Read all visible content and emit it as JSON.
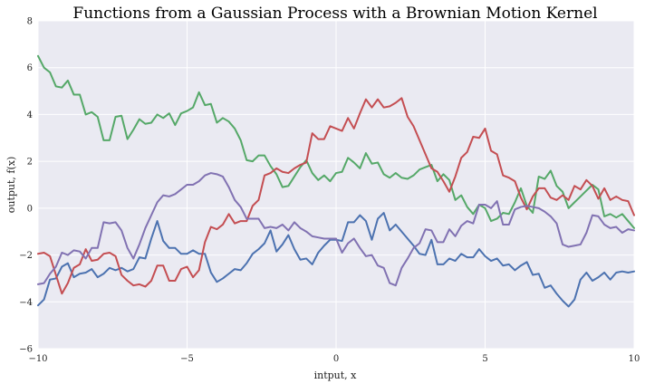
{
  "chart_data": {
    "type": "line",
    "title": "Functions from a Gaussian Process with a Brownian Motion Kernel",
    "xlabel": "intput, x",
    "ylabel": "output, f(x)",
    "xlim": [
      -10,
      10
    ],
    "ylim": [
      -6,
      8
    ],
    "xticks": [
      -10,
      -5,
      0,
      5,
      10
    ],
    "yticks": [
      -6,
      -4,
      -2,
      0,
      2,
      4,
      6,
      8
    ],
    "grid": true,
    "legend": "none",
    "background": "#EAEAF2",
    "x": [
      -10.0,
      -9.8,
      -9.6,
      -9.4,
      -9.2,
      -9.0,
      -8.8,
      -8.6,
      -8.4,
      -8.2,
      -8.0,
      -7.8,
      -7.6,
      -7.4,
      -7.2,
      -7.0,
      -6.8,
      -6.6,
      -6.4,
      -6.2,
      -6.0,
      -5.8,
      -5.6,
      -5.4,
      -5.2,
      -5.0,
      -4.8,
      -4.6,
      -4.4,
      -4.2,
      -4.0,
      -3.8,
      -3.6,
      -3.4,
      -3.2,
      -3.0,
      -2.8,
      -2.6,
      -2.4,
      -2.2,
      -2.0,
      -1.8,
      -1.6,
      -1.4,
      -1.2,
      -1.0,
      -0.8,
      -0.6,
      -0.4,
      -0.2,
      0.0,
      0.2,
      0.4,
      0.6,
      0.8,
      1.0,
      1.2,
      1.4,
      1.6,
      1.8,
      2.0,
      2.2,
      2.4,
      2.6,
      2.8,
      3.0,
      3.2,
      3.4,
      3.6,
      3.8,
      4.0,
      4.2,
      4.4,
      4.6,
      4.8,
      5.0,
      5.2,
      5.4,
      5.6,
      5.8,
      6.0,
      6.2,
      6.4,
      6.6,
      6.8,
      7.0,
      7.2,
      7.4,
      7.6,
      7.8,
      8.0,
      8.2,
      8.4,
      8.6,
      8.8,
      9.0,
      9.2,
      9.4,
      9.6,
      9.8,
      10.0
    ],
    "series": [
      {
        "color": "#4C72B0",
        "values": [
          -4.15,
          -3.9,
          -3.05,
          -3.0,
          -2.5,
          -2.35,
          -2.95,
          -2.8,
          -2.75,
          -2.6,
          -2.95,
          -2.8,
          -2.55,
          -2.65,
          -2.55,
          -2.7,
          -2.6,
          -2.1,
          -2.15,
          -1.3,
          -0.55,
          -1.4,
          -1.7,
          -1.7,
          -1.95,
          -1.95,
          -1.8,
          -1.95,
          -1.95,
          -2.75,
          -3.15,
          -3.0,
          -2.8,
          -2.6,
          -2.65,
          -2.35,
          -1.95,
          -1.75,
          -1.5,
          -0.95,
          -1.85,
          -1.55,
          -1.15,
          -1.75,
          -2.2,
          -2.15,
          -2.4,
          -1.9,
          -1.6,
          -1.35,
          -1.35,
          -1.4,
          -0.6,
          -0.6,
          -0.3,
          -0.55,
          -1.35,
          -0.45,
          -0.2,
          -0.95,
          -0.7,
          -1.0,
          -1.3,
          -1.6,
          -1.95,
          -2.0,
          -1.35,
          -2.4,
          -2.4,
          -2.15,
          -2.25,
          -1.95,
          -2.1,
          -2.1,
          -1.75,
          -2.05,
          -2.25,
          -2.15,
          -2.45,
          -2.4,
          -2.65,
          -2.45,
          -2.3,
          -2.85,
          -2.8,
          -3.4,
          -3.3,
          -3.65,
          -3.95,
          -4.2,
          -3.9,
          -3.05,
          -2.75,
          -3.1,
          -2.95,
          -2.75,
          -3.05,
          -2.75,
          -2.7,
          -2.75,
          -2.7
        ]
      },
      {
        "color": "#55A868",
        "values": [
          6.5,
          6.0,
          5.8,
          5.2,
          5.15,
          5.45,
          4.85,
          4.85,
          4.0,
          4.1,
          3.9,
          2.9,
          2.9,
          3.9,
          3.95,
          2.95,
          3.35,
          3.8,
          3.6,
          3.65,
          4.0,
          3.85,
          4.05,
          3.55,
          4.05,
          4.15,
          4.3,
          4.95,
          4.4,
          4.45,
          3.65,
          3.85,
          3.7,
          3.4,
          2.9,
          2.05,
          2.0,
          2.25,
          2.25,
          1.8,
          1.45,
          0.9,
          0.95,
          1.35,
          1.75,
          2.05,
          1.5,
          1.2,
          1.4,
          1.15,
          1.5,
          1.55,
          2.15,
          1.95,
          1.7,
          2.35,
          1.9,
          1.95,
          1.45,
          1.3,
          1.5,
          1.3,
          1.25,
          1.4,
          1.65,
          1.75,
          1.85,
          1.15,
          1.45,
          1.2,
          0.35,
          0.55,
          0.05,
          -0.25,
          0.15,
          0.0,
          -0.55,
          -0.45,
          -0.2,
          -0.25,
          0.25,
          0.85,
          0.1,
          -0.2,
          1.35,
          1.25,
          1.6,
          0.95,
          0.7,
          0.0,
          0.25,
          0.5,
          0.75,
          1.0,
          0.8,
          -0.35,
          -0.25,
          -0.4,
          -0.25,
          -0.55,
          -0.85
        ]
      },
      {
        "color": "#C44E52",
        "values": [
          -1.95,
          -1.9,
          -2.05,
          -2.85,
          -3.65,
          -3.2,
          -2.55,
          -2.4,
          -1.75,
          -2.25,
          -2.2,
          -1.95,
          -1.9,
          -2.05,
          -2.85,
          -3.1,
          -3.3,
          -3.25,
          -3.35,
          -3.1,
          -2.45,
          -2.45,
          -3.1,
          -3.1,
          -2.6,
          -2.5,
          -2.95,
          -2.65,
          -1.45,
          -0.8,
          -0.9,
          -0.7,
          -0.25,
          -0.65,
          -0.55,
          -0.55,
          0.1,
          0.35,
          1.4,
          1.5,
          1.7,
          1.55,
          1.5,
          1.7,
          1.85,
          1.95,
          3.2,
          2.95,
          2.95,
          3.5,
          3.4,
          3.3,
          3.85,
          3.4,
          4.05,
          4.65,
          4.3,
          4.65,
          4.3,
          4.35,
          4.5,
          4.7,
          3.9,
          3.5,
          2.9,
          2.3,
          1.7,
          1.55,
          1.15,
          0.7,
          1.35,
          2.15,
          2.4,
          3.05,
          3.0,
          3.4,
          2.45,
          2.3,
          1.4,
          1.3,
          1.15,
          0.45,
          -0.05,
          0.5,
          0.85,
          0.85,
          0.45,
          0.35,
          0.55,
          0.35,
          0.95,
          0.8,
          1.2,
          0.95,
          0.4,
          0.85,
          0.35,
          0.5,
          0.35,
          0.3,
          -0.3
        ]
      },
      {
        "color": "#8172B2",
        "values": [
          -3.25,
          -3.2,
          -2.8,
          -2.5,
          -1.9,
          -2.0,
          -1.8,
          -1.85,
          -2.15,
          -1.7,
          -1.7,
          -0.6,
          -0.65,
          -0.6,
          -0.95,
          -1.7,
          -2.15,
          -1.55,
          -0.85,
          -0.3,
          0.25,
          0.55,
          0.5,
          0.6,
          0.8,
          1.0,
          1.0,
          1.15,
          1.4,
          1.5,
          1.45,
          1.35,
          0.9,
          0.35,
          0.05,
          -0.45,
          -0.45,
          -0.45,
          -0.85,
          -0.8,
          -0.85,
          -0.7,
          -0.95,
          -0.6,
          -0.85,
          -1.0,
          -1.2,
          -1.25,
          -1.3,
          -1.3,
          -1.3,
          -1.9,
          -1.5,
          -1.3,
          -1.7,
          -2.05,
          -2.0,
          -2.45,
          -2.55,
          -3.2,
          -3.3,
          -2.55,
          -2.15,
          -1.7,
          -1.5,
          -0.9,
          -0.95,
          -1.45,
          -1.45,
          -0.9,
          -1.2,
          -0.75,
          -0.55,
          -0.65,
          0.15,
          0.15,
          0.0,
          0.3,
          -0.7,
          -0.7,
          -0.05,
          0.05,
          0.1,
          0.05,
          0.0,
          -0.15,
          -0.35,
          -0.65,
          -1.55,
          -1.65,
          -1.6,
          -1.55,
          -1.05,
          -0.3,
          -0.35,
          -0.7,
          -0.85,
          -0.8,
          -1.05,
          -0.9,
          -0.95
        ]
      }
    ]
  }
}
